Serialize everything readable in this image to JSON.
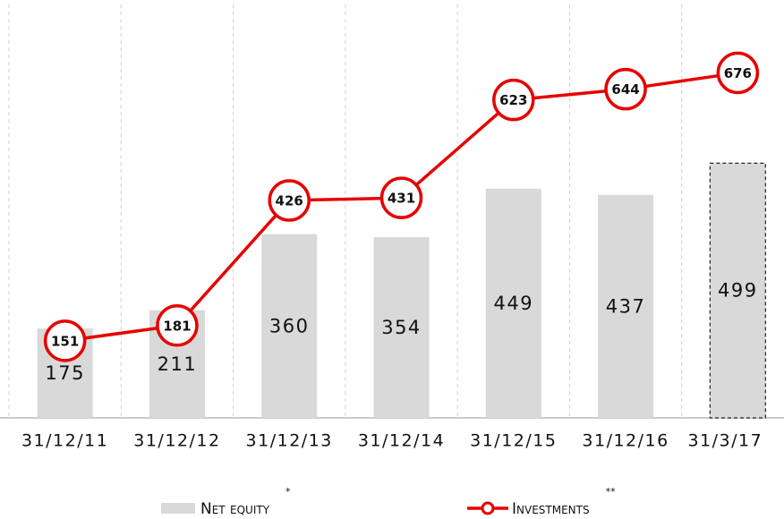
{
  "chart_data": {
    "type": "bar_line",
    "categories": [
      "31/12/11",
      "31/12/12",
      "31/12/13",
      "31/12/14",
      "31/12/15",
      "31/12/16",
      "31/3/17"
    ],
    "series": [
      {
        "name": "Net equity",
        "note": "*",
        "type": "bar",
        "color": "#d9d9d9",
        "values": [
          175,
          211,
          360,
          354,
          449,
          437,
          499
        ],
        "dashed": [
          false,
          false,
          false,
          false,
          false,
          false,
          true
        ]
      },
      {
        "name": "Investments",
        "note": "**",
        "type": "line",
        "color": "#e60000",
        "values": [
          151,
          181,
          426,
          431,
          623,
          644,
          676
        ]
      }
    ],
    "ylim": [
      0,
      810
    ],
    "grid": true,
    "legend": "bottom"
  }
}
